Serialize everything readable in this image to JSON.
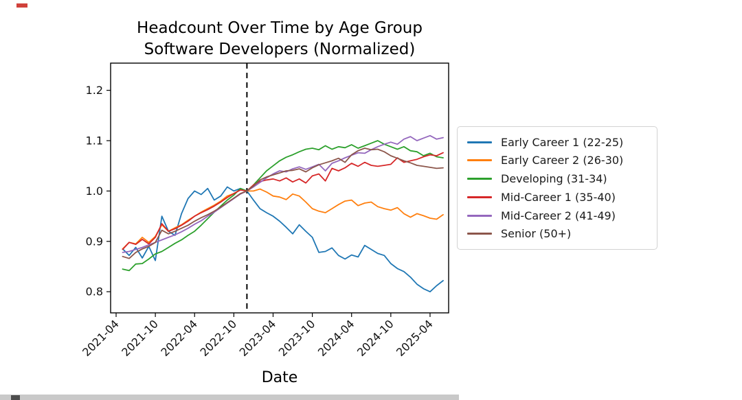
{
  "figure": {
    "title_line1": "Headcount Over Time by Age Group",
    "title_line2": "Software Developers (Normalized)"
  },
  "chart_data": {
    "type": "line",
    "title": "Headcount Over Time by Age Group — Software Developers (Normalized)",
    "xlabel": "Date",
    "ylabel": "",
    "grid": false,
    "legend_position": "right of plot",
    "ylim": [
      0.758,
      1.254
    ],
    "y_ticks": [
      0.8,
      0.9,
      1.0,
      1.1,
      1.2
    ],
    "y_tick_labels": [
      "0.8",
      "0.9",
      "1.0",
      "1.1",
      "1.2"
    ],
    "x_tick_labels": [
      "2021-04",
      "2021-10",
      "2022-04",
      "2022-10",
      "2023-04",
      "2023-10",
      "2024-04",
      "2024-10",
      "2025-04"
    ],
    "annotations": {
      "vline_date": "2022-12",
      "vline_style": "black dashed vertical line (normalization point)"
    },
    "dates": [
      "2021-05",
      "2021-06",
      "2021-07",
      "2021-08",
      "2021-09",
      "2021-10",
      "2021-11",
      "2021-12",
      "2022-01",
      "2022-02",
      "2022-03",
      "2022-04",
      "2022-05",
      "2022-06",
      "2022-07",
      "2022-08",
      "2022-09",
      "2022-10",
      "2022-11",
      "2022-12",
      "2023-01",
      "2023-02",
      "2023-03",
      "2023-04",
      "2023-05",
      "2023-06",
      "2023-07",
      "2023-08",
      "2023-09",
      "2023-10",
      "2023-11",
      "2023-12",
      "2024-01",
      "2024-02",
      "2024-03",
      "2024-04",
      "2024-05",
      "2024-06",
      "2024-07",
      "2024-08",
      "2024-09",
      "2024-10",
      "2024-11",
      "2024-12",
      "2025-01",
      "2025-02",
      "2025-03",
      "2025-04",
      "2025-05",
      "2025-06"
    ],
    "series": [
      {
        "name": "Early Career 1 (22-25)",
        "color": "#1f77b4",
        "values": [
          0.885,
          0.872,
          0.888,
          0.867,
          0.89,
          0.862,
          0.95,
          0.92,
          0.912,
          0.955,
          0.985,
          1.0,
          0.993,
          1.005,
          0.982,
          0.99,
          1.008,
          1.0,
          1.005,
          1.0,
          0.982,
          0.965,
          0.957,
          0.95,
          0.94,
          0.928,
          0.915,
          0.933,
          0.92,
          0.908,
          0.878,
          0.88,
          0.887,
          0.872,
          0.865,
          0.873,
          0.869,
          0.892,
          0.884,
          0.876,
          0.872,
          0.856,
          0.846,
          0.84,
          0.829,
          0.815,
          0.806,
          0.8,
          0.812,
          0.822
        ]
      },
      {
        "name": "Early Career 2 (26-30)",
        "color": "#ff7f0e",
        "values": [
          0.885,
          0.898,
          0.895,
          0.908,
          0.898,
          0.91,
          0.933,
          0.92,
          0.927,
          0.933,
          0.942,
          0.95,
          0.958,
          0.965,
          0.972,
          0.98,
          0.99,
          0.995,
          1.003,
          1.0,
          1.0,
          1.004,
          0.998,
          0.99,
          0.988,
          0.983,
          0.994,
          0.99,
          0.978,
          0.965,
          0.96,
          0.957,
          0.965,
          0.973,
          0.98,
          0.982,
          0.971,
          0.976,
          0.978,
          0.969,
          0.965,
          0.962,
          0.967,
          0.955,
          0.948,
          0.955,
          0.951,
          0.946,
          0.944,
          0.953
        ]
      },
      {
        "name": "Developing (31-34)",
        "color": "#2ca02c",
        "values": [
          0.845,
          0.842,
          0.855,
          0.856,
          0.865,
          0.875,
          0.88,
          0.888,
          0.896,
          0.903,
          0.912,
          0.92,
          0.932,
          0.945,
          0.958,
          0.97,
          0.982,
          0.992,
          1.005,
          1.0,
          1.012,
          1.026,
          1.04,
          1.05,
          1.06,
          1.067,
          1.072,
          1.078,
          1.083,
          1.085,
          1.082,
          1.09,
          1.083,
          1.088,
          1.086,
          1.092,
          1.085,
          1.09,
          1.095,
          1.1,
          1.093,
          1.088,
          1.083,
          1.088,
          1.08,
          1.078,
          1.07,
          1.075,
          1.068,
          1.066
        ]
      },
      {
        "name": "Mid-Career 1 (35-40)",
        "color": "#d62728",
        "values": [
          0.884,
          0.898,
          0.894,
          0.904,
          0.895,
          0.908,
          0.935,
          0.92,
          0.925,
          0.932,
          0.94,
          0.95,
          0.957,
          0.963,
          0.97,
          0.978,
          0.987,
          0.995,
          1.002,
          1.0,
          1.012,
          1.019,
          1.022,
          1.024,
          1.02,
          1.026,
          1.018,
          1.024,
          1.016,
          1.03,
          1.034,
          1.02,
          1.045,
          1.04,
          1.046,
          1.055,
          1.049,
          1.057,
          1.051,
          1.049,
          1.051,
          1.053,
          1.066,
          1.057,
          1.06,
          1.063,
          1.068,
          1.072,
          1.07,
          1.076
        ]
      },
      {
        "name": "Mid-Career 2 (41-49)",
        "color": "#9467bd",
        "values": [
          0.878,
          0.88,
          0.884,
          0.888,
          0.893,
          0.898,
          0.903,
          0.908,
          0.913,
          0.919,
          0.926,
          0.934,
          0.941,
          0.95,
          0.958,
          0.967,
          0.976,
          0.985,
          0.994,
          1.0,
          1.008,
          1.017,
          1.026,
          1.034,
          1.04,
          1.038,
          1.044,
          1.048,
          1.043,
          1.048,
          1.053,
          1.04,
          1.055,
          1.06,
          1.066,
          1.071,
          1.076,
          1.075,
          1.082,
          1.088,
          1.093,
          1.097,
          1.093,
          1.103,
          1.108,
          1.1,
          1.105,
          1.11,
          1.103,
          1.106
        ]
      },
      {
        "name": "Senior (50+)",
        "color": "#8c564b",
        "values": [
          0.87,
          0.866,
          0.878,
          0.885,
          0.89,
          0.898,
          0.922,
          0.915,
          0.92,
          0.926,
          0.932,
          0.94,
          0.947,
          0.953,
          0.96,
          0.968,
          0.977,
          0.986,
          0.995,
          1.0,
          1.01,
          1.022,
          1.028,
          1.032,
          1.036,
          1.04,
          1.041,
          1.044,
          1.038,
          1.046,
          1.052,
          1.056,
          1.06,
          1.065,
          1.057,
          1.072,
          1.08,
          1.085,
          1.082,
          1.083,
          1.078,
          1.07,
          1.065,
          1.06,
          1.056,
          1.051,
          1.049,
          1.047,
          1.045,
          1.046
        ]
      }
    ]
  }
}
